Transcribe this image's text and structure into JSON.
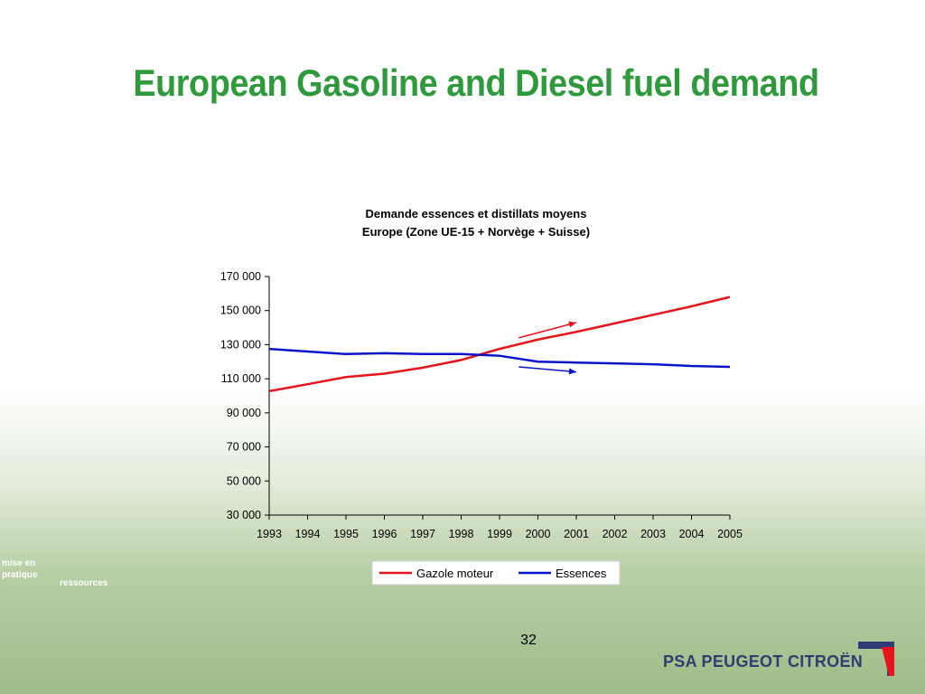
{
  "slide": {
    "title": "European Gasoline and Diesel fuel demand",
    "page_number": "32",
    "brand": "PSA PEUGEOT CITROËN",
    "bg_texts": [
      "mise en",
      "pratique",
      "ressources"
    ]
  },
  "colors": {
    "title": "#2e9a3c",
    "gazole": "#e8141c",
    "essences": "#0a14c8",
    "brand": "#2c3e73"
  },
  "chart_data": {
    "type": "line",
    "title": "Demande essences et distillats moyens",
    "subtitle": "Europe (Zone UE-15 + Norvège + Suisse)",
    "x": [
      "1993",
      "1994",
      "1995",
      "1996",
      "1997",
      "1998",
      "1999",
      "2000",
      "2001",
      "2002",
      "2003",
      "2004",
      "2005"
    ],
    "ylim": [
      30000,
      170000
    ],
    "yticks": [
      30000,
      50000,
      70000,
      90000,
      110000,
      130000,
      150000,
      170000
    ],
    "ytick_labels": [
      "30 000",
      "50 000",
      "70 000",
      "90 000",
      "110 000",
      "130 000",
      "150 000",
      "170 000"
    ],
    "legend_position": "bottom",
    "series": [
      {
        "name": "Gazole moteur",
        "color": "#e8141c",
        "values": [
          102700,
          106800,
          111000,
          113000,
          116500,
          121000,
          127500,
          133000,
          137500,
          142500,
          147500,
          152500,
          158000
        ]
      },
      {
        "name": "Essences",
        "color": "#0a14c8",
        "values": [
          127500,
          126000,
          124500,
          125000,
          124500,
          124500,
          123500,
          120000,
          119500,
          119000,
          118500,
          117500,
          117000
        ]
      }
    ],
    "annotations": [
      {
        "type": "arrow",
        "color": "#e8141c",
        "from": [
          "1999.5",
          134000
        ],
        "to": [
          "2001",
          143000
        ]
      },
      {
        "type": "arrow",
        "color": "#0a14c8",
        "from": [
          "1999.5",
          117000
        ],
        "to": [
          "2001",
          114000
        ]
      }
    ]
  }
}
